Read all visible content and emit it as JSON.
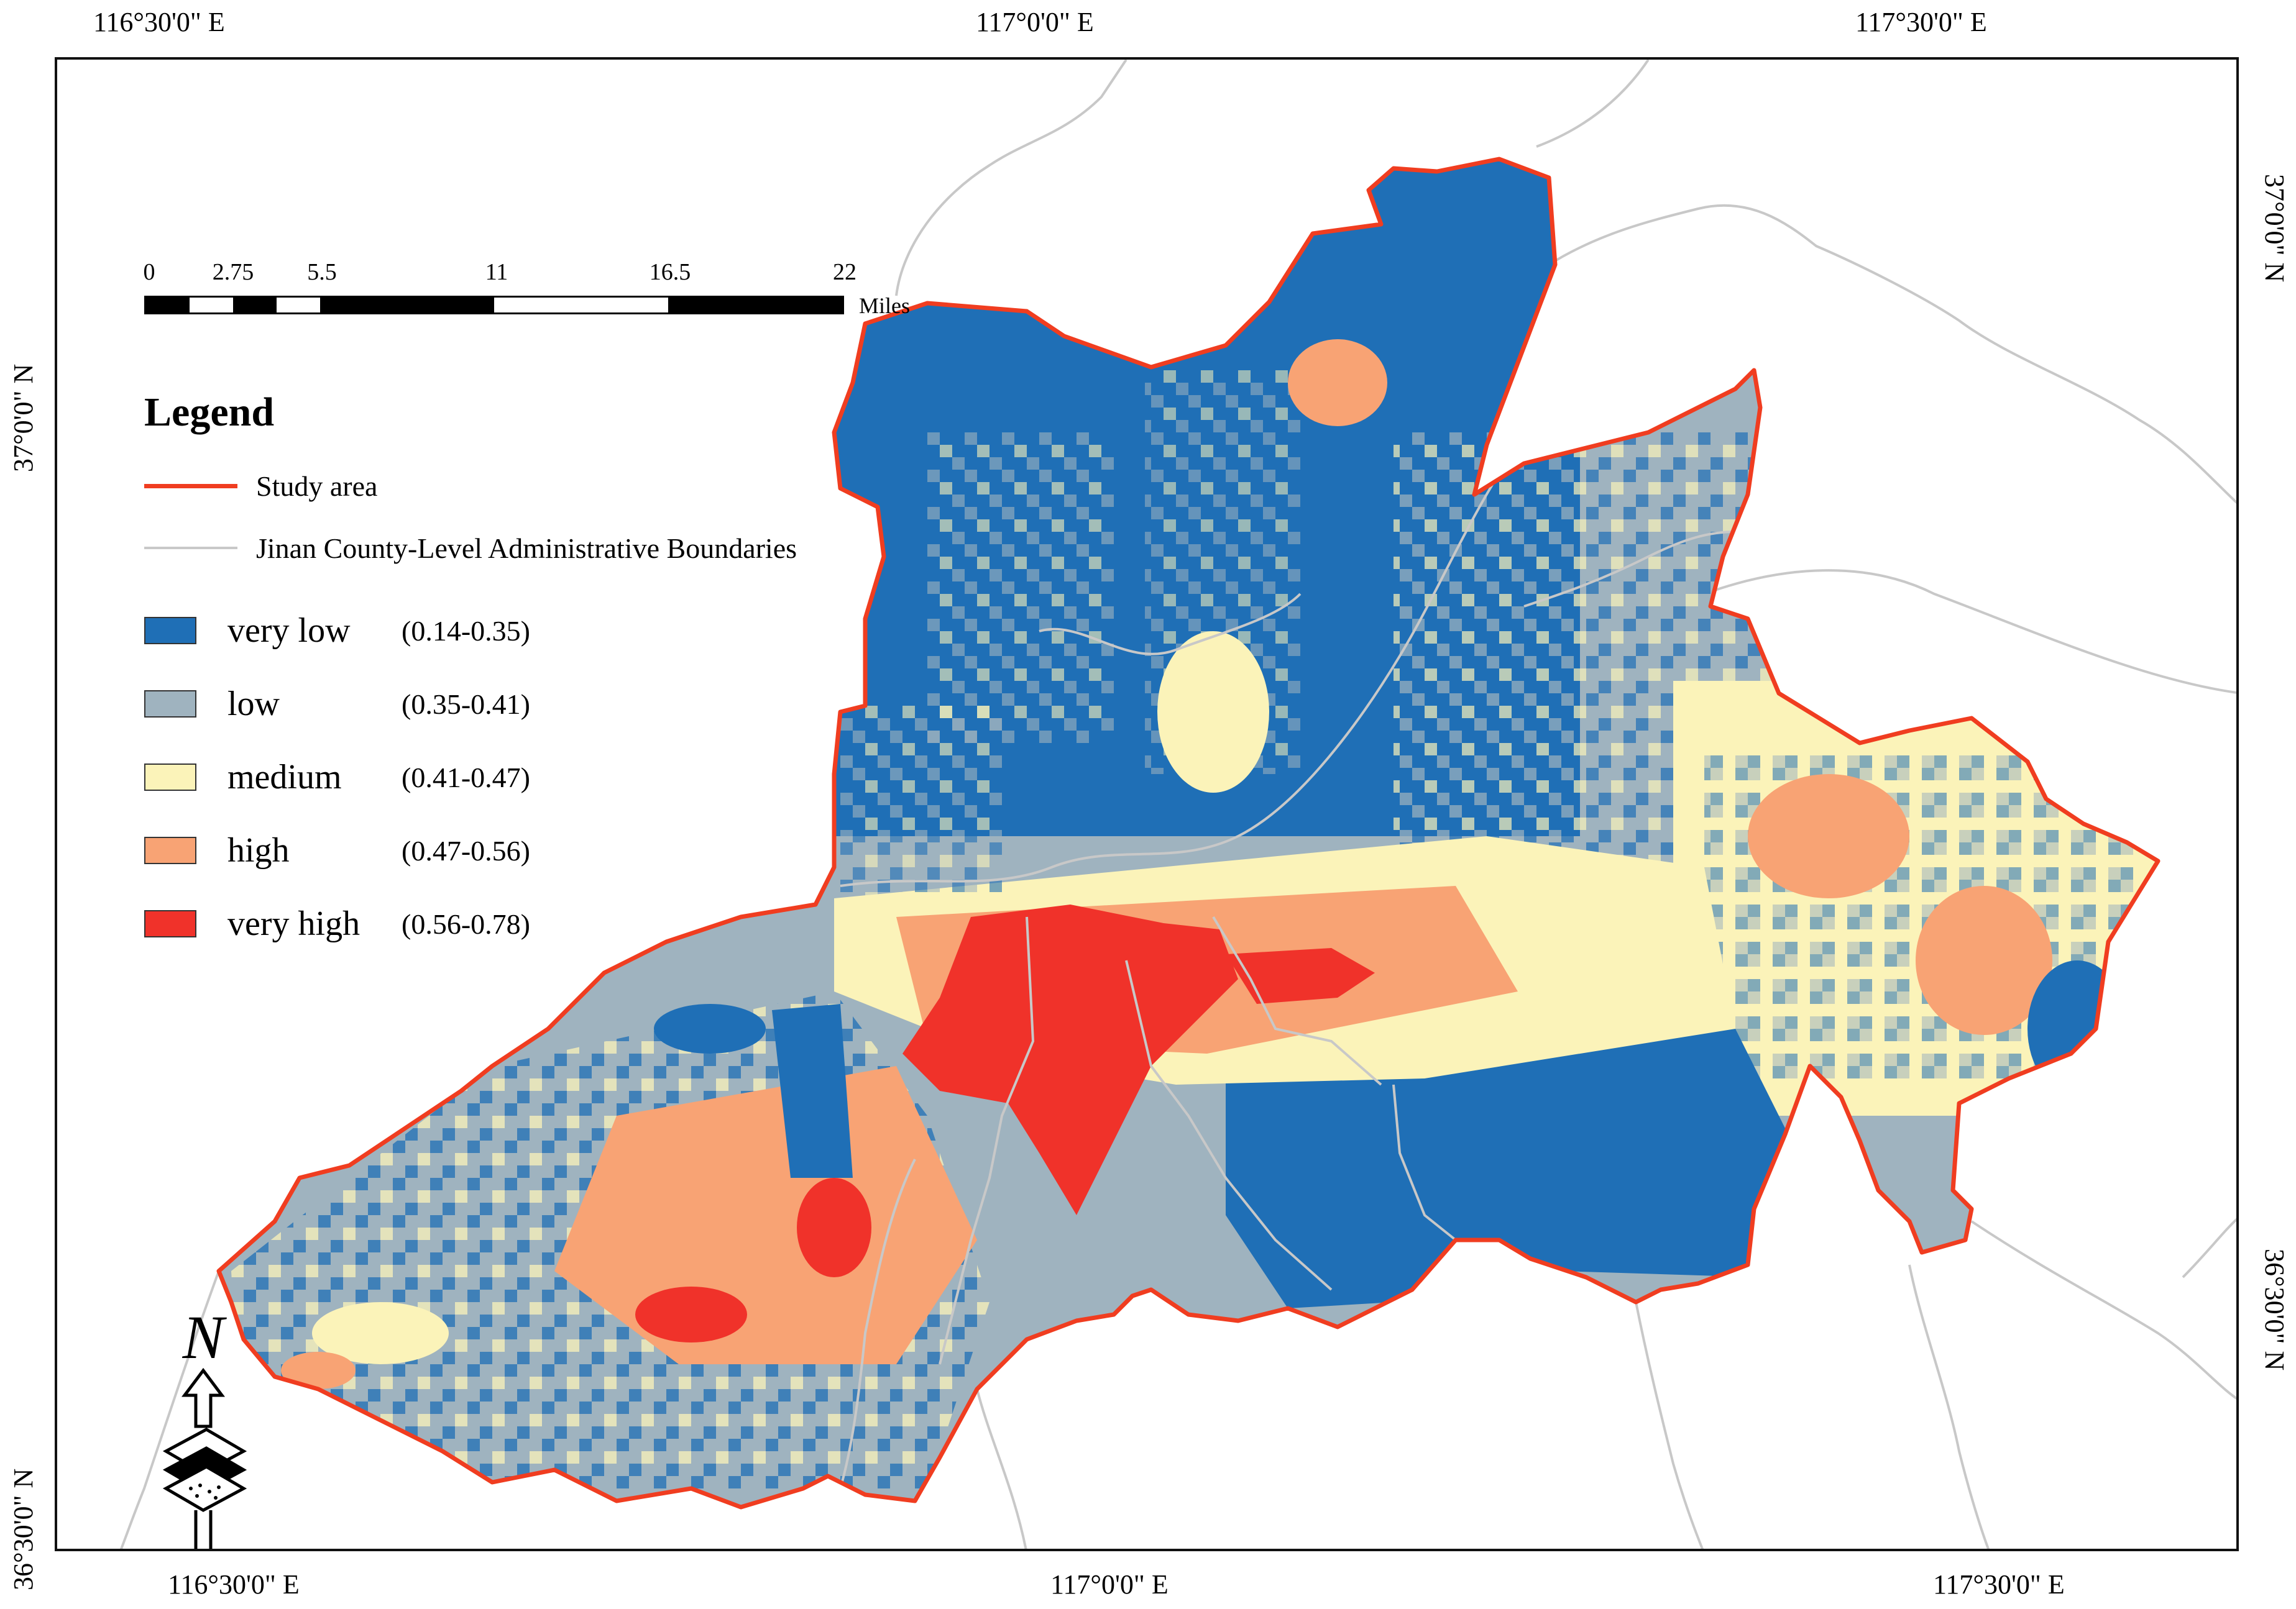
{
  "graticule": {
    "top": [
      "116°30'0\" E",
      "117°0'0\" E",
      "117°30'0\" E"
    ],
    "bottom": [
      "116°30'0\" E",
      "117°0'0\" E",
      "117°30'0\" E"
    ],
    "left": [
      "37°0'0\" N",
      "36°30'0\" N"
    ],
    "right": [
      "37°0'0\" N",
      "36°30'0\" N"
    ]
  },
  "scale_bar": {
    "ticks": [
      "0",
      "2.75",
      "5.5",
      "11",
      "16.5",
      "22"
    ],
    "units": "Miles"
  },
  "legend": {
    "title": "Legend",
    "lines": [
      {
        "label": "Study area",
        "color": "#f03d20"
      },
      {
        "label": "Jinan County-Level Administrative Boundaries",
        "color": "#c8c8c8"
      }
    ],
    "classes": [
      {
        "name": "very low",
        "range": "(0.14-0.35)",
        "color": "#1f6fb6"
      },
      {
        "name": "low",
        "range": "(0.35-0.41)",
        "color": "#9fb3bf"
      },
      {
        "name": "medium",
        "range": "(0.41-0.47)",
        "color": "#fbf3b9"
      },
      {
        "name": "high",
        "range": "(0.47-0.56)",
        "color": "#f8a374"
      },
      {
        "name": "very high",
        "range": "(0.56-0.78)",
        "color": "#f0322a"
      }
    ]
  },
  "north_arrow": {
    "label": "N"
  }
}
